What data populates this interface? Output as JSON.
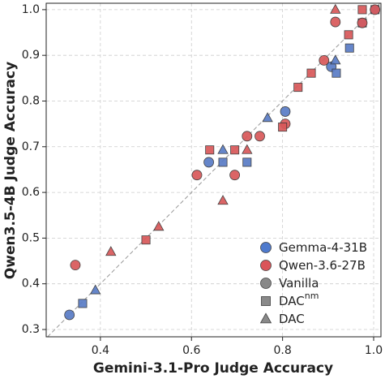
{
  "chart_data": {
    "type": "scatter",
    "xlabel": "Gemini-3.1-Pro Judge Accuracy",
    "ylabel": "Qwen3.5-4B Judge Accuracy",
    "xlim": [
      0.281,
      1.016
    ],
    "ylim": [
      0.284,
      1.014
    ],
    "xticks": [
      0.4,
      0.6,
      0.8,
      {
        "value": 1,
        "label": "1.0"
      }
    ],
    "yticks": [
      0.3,
      0.4,
      0.5,
      0.6,
      0.7,
      0.8,
      0.9,
      {
        "value": 1,
        "label": "1.0"
      }
    ],
    "grid": true,
    "diagonal": true,
    "series": [
      {
        "color": "#5a7cc6",
        "marker": "circle",
        "x": [
          0.332,
          0.907,
          0.806,
          0.638
        ],
        "values": [
          0.332,
          0.875,
          0.777,
          0.666
        ]
      },
      {
        "color": "#5a7cc6",
        "marker": "square",
        "x": [
          0.361,
          0.722,
          0.918,
          0.947,
          0.975,
          1.003,
          0.669
        ],
        "values": [
          0.357,
          0.666,
          0.861,
          0.916,
          0.971,
          1.0,
          0.666
        ]
      },
      {
        "color": "#5a7cc6",
        "marker": "triangle",
        "x": [
          0.389,
          0.669,
          0.767,
          0.916
        ],
        "values": [
          0.386,
          0.693,
          0.763,
          0.889
        ]
      },
      {
        "color": "#d9585a",
        "marker": "circle",
        "x": [
          0.345,
          0.612,
          0.695,
          0.722,
          0.75,
          0.806,
          0.916,
          0.975,
          1.003,
          0.891
        ],
        "values": [
          0.441,
          0.638,
          0.638,
          0.723,
          0.723,
          0.75,
          0.973,
          0.971,
          1.0,
          0.889
        ]
      },
      {
        "color": "#d9585a",
        "marker": "square",
        "x": [
          0.5,
          0.64,
          0.695,
          0.8,
          0.834,
          0.863,
          0.945,
          0.975
        ],
        "values": [
          0.496,
          0.693,
          0.693,
          0.743,
          0.83,
          0.861,
          0.945,
          1.0
        ]
      },
      {
        "color": "#d9585a",
        "marker": "triangle",
        "x": [
          0.423,
          0.528,
          0.722,
          0.669,
          0.916
        ],
        "values": [
          0.47,
          0.525,
          0.693,
          0.582,
          1.0
        ]
      }
    ],
    "legend": {
      "position": "lower right",
      "items": [
        {
          "name": "Gemma-4-31B",
          "color": "#3f6fc9",
          "marker": "circle"
        },
        {
          "name": "Qwen-3.6-27B",
          "color": "#d9474b",
          "marker": "circle"
        },
        {
          "name": "Vanilla",
          "color": "#7f7f7f",
          "marker": "circle"
        },
        {
          "name": "DAC",
          "sup": "nm",
          "color": "#7f7f7f",
          "marker": "square"
        },
        {
          "name": "DAC",
          "color": "#7f7f7f",
          "marker": "triangle"
        }
      ]
    }
  }
}
